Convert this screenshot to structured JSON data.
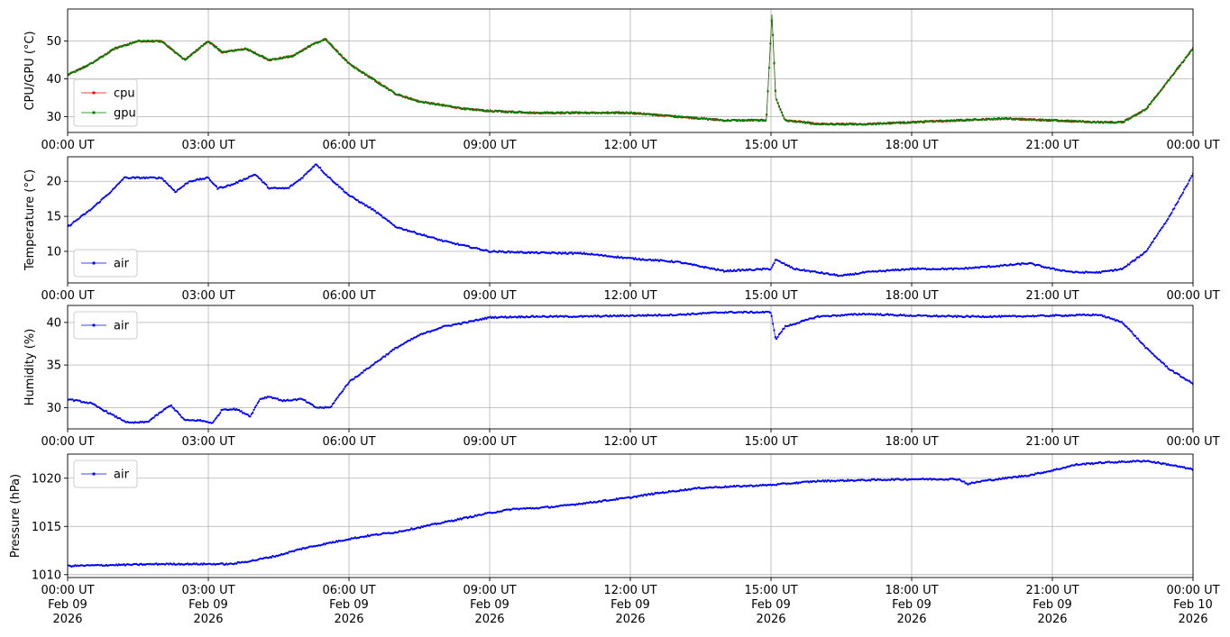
{
  "chart_data": [
    {
      "type": "line",
      "ylabel": "CPU/GPU (°C)",
      "ylim": [
        25.8,
        58.5
      ],
      "yticks": [
        30,
        40,
        50
      ],
      "xlim": [
        0,
        24
      ],
      "legend_position": "lower-left",
      "grid": true,
      "x_unit": "hours UT, 2026-02-09",
      "x": [
        0,
        0.5,
        1,
        1.5,
        2,
        2.5,
        3,
        3.3,
        3.8,
        4.3,
        4.8,
        5.2,
        5.5,
        6,
        6.5,
        7,
        7.5,
        8,
        8.5,
        9,
        10,
        11,
        12,
        13,
        14,
        14.9,
        15.02,
        15.1,
        15.3,
        15.7,
        16,
        17,
        18,
        19,
        20,
        21,
        22,
        22.5,
        23,
        23.5,
        24
      ],
      "series": [
        {
          "name": "cpu",
          "color": "#ff0000",
          "values": [
            41,
            44,
            48,
            50,
            50,
            45,
            50,
            47,
            48,
            45,
            46,
            49,
            50.5,
            44,
            40,
            36,
            34,
            33,
            32,
            31.5,
            31,
            31,
            31,
            30,
            29,
            29,
            57,
            35,
            29,
            28.5,
            28,
            28,
            28.5,
            29,
            29.5,
            29,
            28.5,
            28.5,
            32,
            40,
            48
          ]
        },
        {
          "name": "gpu",
          "color": "#008000",
          "values": [
            41,
            44,
            48,
            50,
            50,
            45,
            50,
            47,
            48,
            45,
            46,
            49,
            50.5,
            44,
            40,
            36,
            34,
            33,
            32,
            31.5,
            31,
            31,
            31,
            30,
            29,
            29,
            57,
            35,
            29,
            28.5,
            28,
            28,
            28.5,
            29,
            29.5,
            29,
            28.5,
            28.5,
            32,
            40,
            48
          ]
        }
      ]
    },
    {
      "type": "line",
      "ylabel": "Temperature (°C)",
      "ylim": [
        5.5,
        23.5
      ],
      "yticks": [
        10,
        15,
        20
      ],
      "xlim": [
        0,
        24
      ],
      "legend_position": "lower-left",
      "grid": true,
      "x": [
        0,
        0.5,
        1,
        1.2,
        1.5,
        2,
        2.3,
        2.6,
        3,
        3.2,
        3.5,
        4,
        4.3,
        4.7,
        5,
        5.3,
        5.5,
        6,
        6.5,
        7,
        8,
        9,
        10,
        11,
        12,
        13,
        14,
        15,
        15.1,
        15.5,
        16.5,
        17,
        18,
        19,
        20,
        20.5,
        21,
        21.5,
        22,
        22.5,
        23,
        23.5,
        24
      ],
      "series": [
        {
          "name": "air",
          "color": "#0000ff",
          "values": [
            13.5,
            16,
            19,
            20.5,
            20.5,
            20.5,
            18.5,
            20,
            20.5,
            19,
            19.5,
            21,
            19,
            19,
            20.5,
            22.5,
            21,
            18,
            16,
            13.5,
            11.5,
            10,
            9.8,
            9.7,
            9,
            8.5,
            7.2,
            7.5,
            8.8,
            7.5,
            6.5,
            7,
            7.5,
            7.5,
            8,
            8.3,
            7.5,
            7,
            7,
            7.5,
            10,
            15,
            21
          ]
        }
      ]
    },
    {
      "type": "line",
      "ylabel": "Humidity (%)",
      "ylim": [
        27.5,
        42
      ],
      "yticks": [
        30,
        35,
        40
      ],
      "xlim": [
        0,
        24
      ],
      "legend_position": "upper-left",
      "grid": true,
      "x": [
        0,
        0.5,
        1,
        1.3,
        1.7,
        2.2,
        2.5,
        2.8,
        3.1,
        3.3,
        3.6,
        3.9,
        4.1,
        4.3,
        4.6,
        5,
        5.3,
        5.6,
        6,
        6.5,
        7,
        7.5,
        8,
        8.5,
        9,
        10,
        11,
        12,
        13,
        14,
        15,
        15.1,
        15.3,
        16,
        17,
        18,
        19,
        20,
        21,
        22,
        22.5,
        23,
        23.5,
        24
      ],
      "series": [
        {
          "name": "air",
          "color": "#0000ff",
          "values": [
            31,
            30.5,
            29,
            28.2,
            28.3,
            30.3,
            28.5,
            28.5,
            28.2,
            29.8,
            29.8,
            29,
            31,
            31.3,
            30.8,
            31,
            30,
            30,
            33,
            35,
            37,
            38.5,
            39.5,
            40,
            40.6,
            40.7,
            40.7,
            40.8,
            40.9,
            41.2,
            41.2,
            38,
            39.5,
            40.7,
            41,
            40.8,
            40.7,
            40.7,
            40.8,
            40.9,
            40,
            37,
            34.5,
            32.8
          ]
        }
      ]
    },
    {
      "type": "line",
      "ylabel": "Pressure (hPa)",
      "ylim": [
        1009.7,
        1022.5
      ],
      "yticks": [
        1010,
        1015,
        1020
      ],
      "xlim": [
        0,
        24
      ],
      "legend_position": "upper-left",
      "grid": true,
      "x": [
        0,
        1,
        2,
        3,
        3.5,
        4,
        4.5,
        5,
        5.5,
        6,
        6.5,
        7,
        7.5,
        8,
        8.5,
        9,
        9.5,
        10,
        10.5,
        11,
        11.5,
        12,
        12.5,
        13,
        13.5,
        14,
        14.5,
        15,
        15.5,
        16,
        17,
        18,
        19,
        19.2,
        19.5,
        20,
        20.5,
        21,
        21.5,
        22,
        22.5,
        23,
        23.5,
        24
      ],
      "series": [
        {
          "name": "air",
          "color": "#0000ff",
          "values": [
            1010.9,
            1011,
            1011.1,
            1011.1,
            1011.1,
            1011.5,
            1012,
            1012.7,
            1013.2,
            1013.7,
            1014.1,
            1014.4,
            1014.9,
            1015.4,
            1015.9,
            1016.4,
            1016.8,
            1016.9,
            1017.1,
            1017.4,
            1017.7,
            1018,
            1018.4,
            1018.7,
            1019,
            1019.1,
            1019.2,
            1019.3,
            1019.5,
            1019.7,
            1019.8,
            1019.9,
            1019.9,
            1019.4,
            1019.7,
            1020,
            1020.3,
            1020.8,
            1021.4,
            1021.6,
            1021.7,
            1021.8,
            1021.4,
            1020.9
          ]
        }
      ]
    }
  ],
  "x_axis": {
    "ticks": [
      0,
      3,
      6,
      9,
      12,
      15,
      18,
      21,
      24
    ],
    "time_labels": [
      "00:00 UT",
      "03:00 UT",
      "06:00 UT",
      "09:00 UT",
      "12:00 UT",
      "15:00 UT",
      "18:00 UT",
      "21:00 UT",
      "00:00 UT"
    ],
    "date_labels": [
      "Feb 09",
      "Feb 09",
      "Feb 09",
      "Feb 09",
      "Feb 09",
      "Feb 09",
      "Feb 09",
      "Feb 09",
      "Feb 10"
    ],
    "year_labels": [
      "2026",
      "2026",
      "2026",
      "2026",
      "2026",
      "2026",
      "2026",
      "2026",
      "2026"
    ]
  }
}
